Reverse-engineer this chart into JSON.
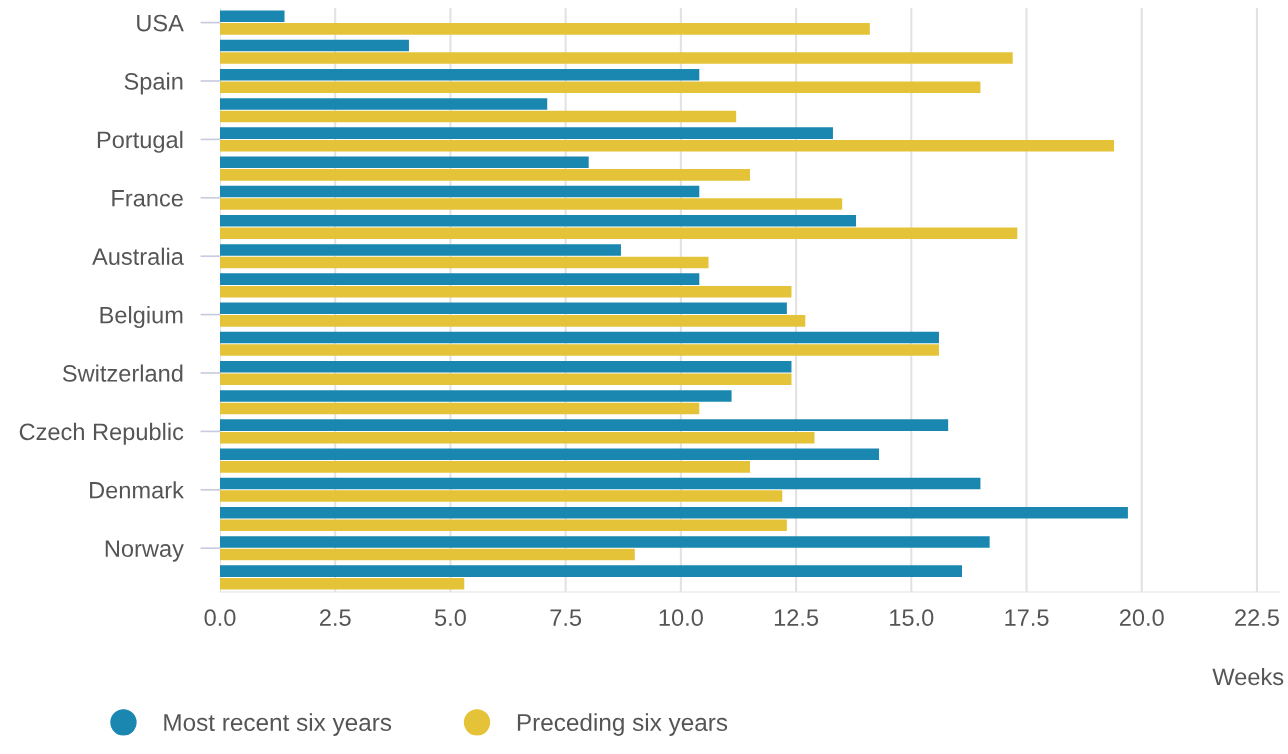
{
  "chart_data": {
    "type": "bar",
    "orientation": "horizontal",
    "xlabel": "Weeks",
    "categories": [
      "USA",
      null,
      "Spain",
      null,
      "Portugal",
      null,
      "France",
      null,
      "Australia",
      null,
      "Belgium",
      null,
      "Switzerland",
      null,
      "Czech Republic",
      null,
      "Denmark",
      null,
      "Norway",
      null
    ],
    "series": [
      {
        "name": "Most recent six years",
        "color": "#1a87b0",
        "values": [
          1.4,
          4.1,
          10.4,
          7.1,
          13.3,
          8.0,
          10.4,
          13.8,
          8.7,
          10.4,
          12.3,
          15.6,
          12.4,
          11.1,
          15.8,
          14.3,
          16.5,
          19.7,
          16.7,
          16.1
        ]
      },
      {
        "name": "Preceding six years",
        "color": "#e5c338",
        "values": [
          14.1,
          17.2,
          16.5,
          11.2,
          19.4,
          11.5,
          13.5,
          17.3,
          10.6,
          12.4,
          12.7,
          15.6,
          12.4,
          10.4,
          12.9,
          11.5,
          12.2,
          12.3,
          9.0,
          5.3
        ]
      }
    ],
    "xlim": [
      0,
      23
    ],
    "xticks": [
      {
        "value": 0,
        "label": "0.0"
      },
      {
        "value": 2.5,
        "label": "2.5"
      },
      {
        "value": 5,
        "label": "5.0"
      },
      {
        "value": 7.5,
        "label": "7.5"
      },
      {
        "value": 10,
        "label": "10.0"
      },
      {
        "value": 12.5,
        "label": "12.5"
      },
      {
        "value": 15,
        "label": "15.0"
      },
      {
        "value": 17.5,
        "label": "17.5"
      },
      {
        "value": 20,
        "label": "20.0"
      },
      {
        "value": 22.5,
        "label": "22.5"
      }
    ],
    "grid": "x",
    "legend": "bottom left"
  }
}
